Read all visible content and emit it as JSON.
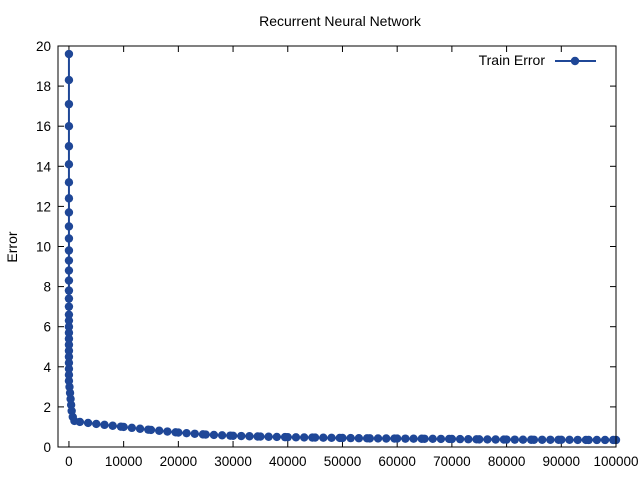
{
  "chart_data": {
    "type": "line",
    "title": "Recurrent Neural Network",
    "xlabel": "",
    "ylabel": "Error",
    "xlim": [
      -2000,
      100000
    ],
    "ylim": [
      0,
      20
    ],
    "xticks": [
      0,
      10000,
      20000,
      30000,
      40000,
      50000,
      60000,
      70000,
      80000,
      90000,
      100000
    ],
    "xtick_labels": [
      "0",
      "10000",
      "20000",
      "30000",
      "40000",
      "50000",
      "60000",
      "70000",
      "80000",
      "90000",
      "100000"
    ],
    "yticks": [
      0,
      2,
      4,
      6,
      8,
      10,
      12,
      14,
      16,
      18,
      20
    ],
    "ytick_labels": [
      "0",
      "2",
      "4",
      "6",
      "8",
      "10",
      "12",
      "14",
      "16",
      "18",
      "20"
    ],
    "grid": false,
    "legend_position": "top-right",
    "series": [
      {
        "name": "Train Error",
        "color": "#1f4797",
        "marker": "circle",
        "x": [
          0,
          0,
          0,
          0,
          0,
          0,
          0,
          0,
          0,
          0,
          0,
          0,
          0,
          0,
          0,
          0,
          0,
          0,
          0,
          0,
          0,
          0,
          0,
          0,
          0,
          0,
          0,
          0,
          0,
          0,
          100,
          200,
          300,
          400,
          500,
          700,
          1000,
          2000,
          5000,
          10000,
          15000,
          20000,
          25000,
          30000,
          35000,
          40000,
          45000,
          50000,
          55000,
          60000,
          65000,
          70000,
          75000,
          80000,
          85000,
          90000,
          95000,
          100000
        ],
        "y": [
          19.6,
          18.3,
          17.1,
          16.0,
          15.0,
          14.1,
          13.2,
          12.4,
          11.7,
          11.0,
          10.4,
          9.8,
          9.3,
          8.8,
          8.3,
          7.8,
          7.4,
          7.0,
          6.6,
          6.3,
          6.0,
          5.7,
          5.4,
          5.1,
          4.8,
          4.5,
          4.2,
          3.9,
          3.6,
          3.3,
          3.0,
          2.7,
          2.4,
          2.1,
          1.8,
          1.5,
          1.3,
          1.25,
          1.15,
          1.0,
          0.85,
          0.72,
          0.62,
          0.56,
          0.52,
          0.49,
          0.47,
          0.45,
          0.43,
          0.42,
          0.41,
          0.4,
          0.38,
          0.37,
          0.36,
          0.36,
          0.35,
          0.35
        ]
      }
    ]
  }
}
